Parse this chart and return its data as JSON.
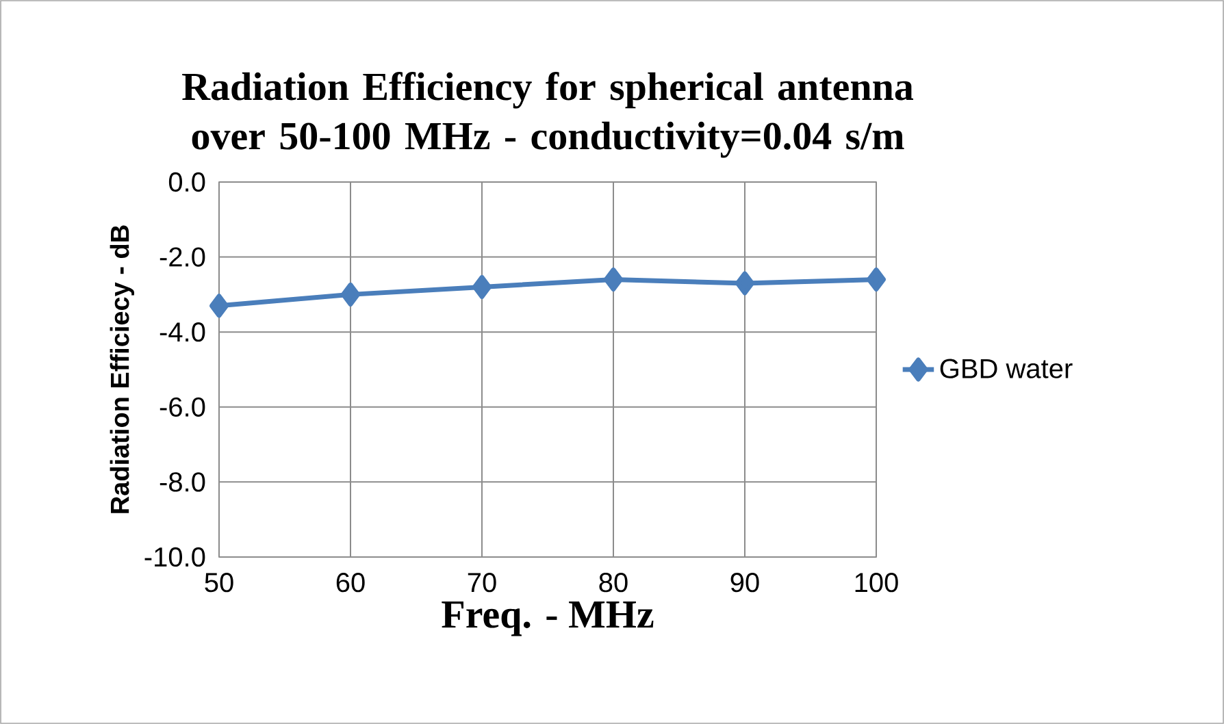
{
  "chart_data": {
    "type": "line",
    "title": "Radiation Efficiency for spherical antenna over 50-100 MHz - conductivity=0.04 s/m",
    "xlabel": "Freq. - MHz",
    "ylabel": "Radiation Efficiecy - dB",
    "x": [
      50,
      60,
      70,
      80,
      90,
      100
    ],
    "series": [
      {
        "name": "GBD water",
        "color": "#4a7ebb",
        "values": [
          -3.3,
          -3.0,
          -2.8,
          -2.6,
          -2.7,
          -2.6
        ]
      }
    ],
    "xlim": [
      50,
      100
    ],
    "xticks": [
      50,
      60,
      70,
      80,
      90,
      100
    ],
    "ylim": [
      -10,
      0
    ],
    "yticks": [
      {
        "value": -10,
        "label": "-10.0"
      },
      {
        "value": -8,
        "label": "-8.0"
      },
      {
        "value": -6,
        "label": "-6.0"
      },
      {
        "value": -4,
        "label": "-4.0"
      },
      {
        "value": -2,
        "label": "-2.0"
      },
      {
        "value": 0,
        "label": "0.0"
      }
    ],
    "grid": true,
    "legend": "right",
    "marker": "diamond",
    "line_style": "solid"
  }
}
